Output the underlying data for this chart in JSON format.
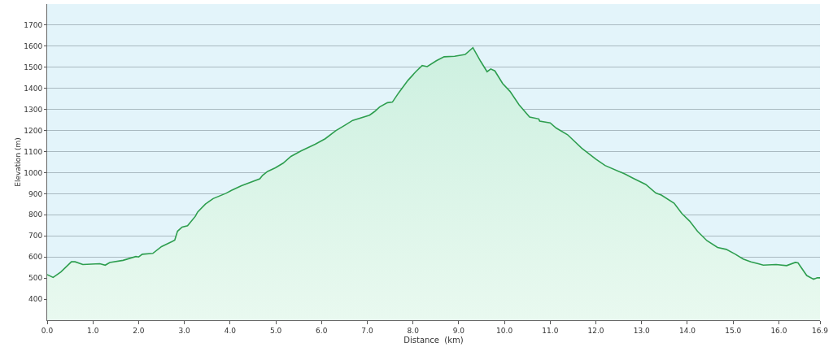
{
  "chart_data": {
    "type": "area",
    "xlabel": "Distance  (km)",
    "ylabel": "Elevation (m)",
    "x": [
      0,
      0.13,
      0.3,
      0.53,
      0.61,
      0.78,
      1.15,
      1.27,
      1.37,
      1.66,
      1.94,
      2.0,
      2.08,
      2.31,
      2.5,
      2.73,
      2.79,
      2.85,
      2.95,
      3.07,
      3.24,
      3.29,
      3.46,
      3.63,
      3.92,
      4.03,
      4.25,
      4.65,
      4.71,
      4.82,
      4.99,
      5.16,
      5.33,
      5.55,
      5.86,
      6.08,
      6.31,
      6.51,
      6.68,
      7.05,
      7.16,
      7.27,
      7.44,
      7.55,
      7.69,
      7.89,
      8.06,
      8.2,
      8.31,
      8.51,
      8.68,
      8.91,
      9.14,
      9.31,
      9.48,
      9.62,
      9.7,
      9.79,
      9.96,
      10.12,
      10.32,
      10.55,
      10.75,
      10.77,
      11.0,
      11.13,
      11.38,
      11.69,
      12.0,
      12.2,
      12.64,
      12.81,
      13.09,
      13.31,
      13.43,
      13.71,
      13.88,
      14.05,
      14.22,
      14.43,
      14.66,
      14.85,
      15.05,
      15.22,
      15.39,
      15.55,
      15.66,
      15.94,
      16.17,
      16.36,
      16.42,
      16.61,
      16.76,
      16.84,
      16.9
    ],
    "series": [
      {
        "color": "#2e9e4f",
        "values": [
          516,
          503,
          529,
          577,
          577,
          564,
          568,
          561,
          574,
          584,
          602,
          600,
          613,
          617,
          649,
          673,
          680,
          722,
          742,
          748,
          793,
          813,
          851,
          877,
          903,
          916,
          938,
          971,
          987,
          1006,
          1023,
          1045,
          1077,
          1103,
          1135,
          1161,
          1199,
          1225,
          1248,
          1273,
          1290,
          1312,
          1332,
          1335,
          1380,
          1438,
          1479,
          1508,
          1503,
          1531,
          1550,
          1552,
          1561,
          1593,
          1528,
          1479,
          1492,
          1483,
          1423,
          1386,
          1322,
          1264,
          1255,
          1245,
          1236,
          1212,
          1180,
          1116,
          1064,
          1034,
          993,
          974,
          944,
          903,
          894,
          855,
          806,
          770,
          722,
          677,
          645,
          636,
          613,
          590,
          577,
          568,
          561,
          564,
          559,
          574,
          572,
          512,
          494,
          501,
          501
        ]
      }
    ],
    "xlim": [
      0,
      16.9
    ],
    "ylim": [
      300,
      1800
    ],
    "xticks": [
      {
        "value": 0,
        "label": "0.0"
      },
      {
        "value": 1,
        "label": "1.0"
      },
      {
        "value": 2,
        "label": "2.0"
      },
      {
        "value": 3,
        "label": "3.0"
      },
      {
        "value": 4,
        "label": "4.0"
      },
      {
        "value": 5,
        "label": "5.0"
      },
      {
        "value": 6,
        "label": "6.0"
      },
      {
        "value": 7,
        "label": "7.0"
      },
      {
        "value": 8,
        "label": "8.0"
      },
      {
        "value": 9,
        "label": "9.0"
      },
      {
        "value": 10,
        "label": "10.0"
      },
      {
        "value": 11,
        "label": "11.0"
      },
      {
        "value": 12,
        "label": "12.0"
      },
      {
        "value": 13,
        "label": "13.0"
      },
      {
        "value": 14,
        "label": "14.0"
      },
      {
        "value": 15,
        "label": "15.0"
      },
      {
        "value": 16,
        "label": "16.0"
      },
      {
        "value": 16.9,
        "label": "16.9"
      }
    ],
    "yticks": [
      400,
      500,
      600,
      700,
      800,
      900,
      1000,
      1100,
      1200,
      1300,
      1400,
      1500,
      1600,
      1700
    ],
    "grid": "y",
    "marker": "none",
    "line_style": "solid"
  }
}
